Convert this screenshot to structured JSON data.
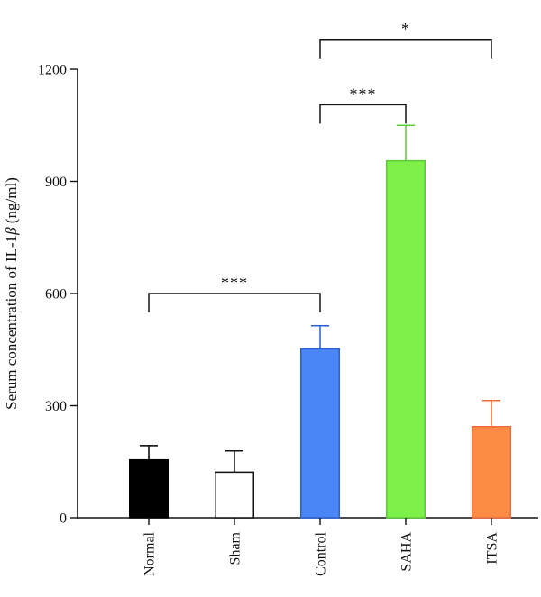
{
  "chart_data": {
    "type": "bar",
    "ylabel": "Serum concentration of IL-1β (ng/ml)",
    "ylabel_parts": {
      "prefix": "Serum concentration of IL-1",
      "symbol": "β",
      "suffix": " (ng/ml)"
    },
    "ylim": [
      0,
      1200
    ],
    "yticks": [
      0,
      300,
      600,
      900,
      1200
    ],
    "categories": [
      "Normal",
      "Sham",
      "Control",
      "SAHA",
      "ITSA"
    ],
    "values": [
      155,
      122,
      452,
      955,
      244
    ],
    "errors": [
      38,
      57,
      62,
      95,
      70
    ],
    "colors": [
      "#000000",
      "#ffffff",
      "#4a86f5",
      "#7ef04a",
      "#fc8c44"
    ],
    "edge_colors": [
      "#000000",
      "#111111",
      "#2a5fd6",
      "#5ccc34",
      "#f06a3a"
    ],
    "grid": false,
    "significance": [
      {
        "from": 0,
        "to": 2,
        "label": "***",
        "level": 600
      },
      {
        "from": 2,
        "to": 3,
        "label": "***",
        "level": 1105
      },
      {
        "from": 2,
        "to": 4,
        "label": "*",
        "level": 1280
      }
    ]
  }
}
